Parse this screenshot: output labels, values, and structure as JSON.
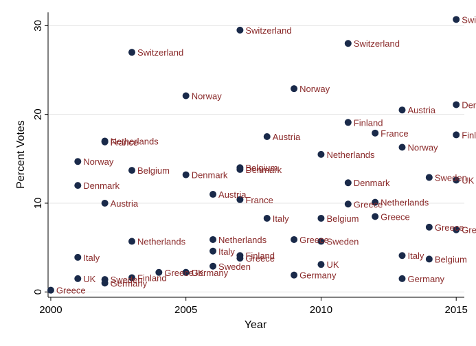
{
  "chart_data": {
    "type": "scatter",
    "xlabel": "Year",
    "ylabel": "Percent Votes",
    "xlim": [
      1999.9,
      2015.3
    ],
    "ylim": [
      -0.6,
      31.5
    ],
    "xticks": [
      2000,
      2005,
      2010,
      2015
    ],
    "yticks": [
      0,
      10,
      20,
      30
    ],
    "grid": "horizontal",
    "marker_color": "#1a2a4a",
    "label_color": "#8a2a2a",
    "points": [
      {
        "x": 2000,
        "y": 0.2,
        "label": "Greece"
      },
      {
        "x": 2001,
        "y": 14.7,
        "label": "Norway"
      },
      {
        "x": 2001,
        "y": 12.0,
        "label": "Denmark"
      },
      {
        "x": 2001,
        "y": 3.9,
        "label": "Italy"
      },
      {
        "x": 2001,
        "y": 1.5,
        "label": "UK"
      },
      {
        "x": 2002,
        "y": 17.0,
        "label": "Netherlands"
      },
      {
        "x": 2002,
        "y": 16.9,
        "label": "France"
      },
      {
        "x": 2002,
        "y": 10.0,
        "label": "Austria"
      },
      {
        "x": 2002,
        "y": 1.4,
        "label": "Sweden"
      },
      {
        "x": 2002,
        "y": 1.0,
        "label": "Germany"
      },
      {
        "x": 2003,
        "y": 27.0,
        "label": "Switzerland"
      },
      {
        "x": 2003,
        "y": 13.7,
        "label": "Belgium"
      },
      {
        "x": 2003,
        "y": 5.7,
        "label": "Netherlands"
      },
      {
        "x": 2003,
        "y": 1.6,
        "label": "Finland"
      },
      {
        "x": 2004,
        "y": 2.2,
        "label": "Greece"
      },
      {
        "x": 2005,
        "y": 22.1,
        "label": "Norway"
      },
      {
        "x": 2005,
        "y": 13.2,
        "label": "Denmark"
      },
      {
        "x": 2005,
        "y": 2.2,
        "label": "UK"
      },
      {
        "x": 2005,
        "y": 2.2,
        "label": "Germany"
      },
      {
        "x": 2006,
        "y": 11.0,
        "label": "Austria"
      },
      {
        "x": 2006,
        "y": 5.9,
        "label": "Netherlands"
      },
      {
        "x": 2006,
        "y": 4.6,
        "label": "Italy"
      },
      {
        "x": 2006,
        "y": 2.9,
        "label": "Sweden"
      },
      {
        "x": 2007,
        "y": 29.5,
        "label": "Switzerland"
      },
      {
        "x": 2007,
        "y": 14.0,
        "label": "Belgium"
      },
      {
        "x": 2007,
        "y": 13.8,
        "label": "Denmark"
      },
      {
        "x": 2007,
        "y": 10.4,
        "label": "France"
      },
      {
        "x": 2007,
        "y": 4.1,
        "label": "Finland"
      },
      {
        "x": 2007,
        "y": 3.8,
        "label": "Greece"
      },
      {
        "x": 2008,
        "y": 17.5,
        "label": "Austria"
      },
      {
        "x": 2008,
        "y": 8.3,
        "label": "Italy"
      },
      {
        "x": 2009,
        "y": 22.9,
        "label": "Norway"
      },
      {
        "x": 2009,
        "y": 5.9,
        "label": "Greece"
      },
      {
        "x": 2009,
        "y": 1.9,
        "label": "Germany"
      },
      {
        "x": 2010,
        "y": 15.5,
        "label": "Netherlands"
      },
      {
        "x": 2010,
        "y": 8.3,
        "label": "Belgium"
      },
      {
        "x": 2010,
        "y": 5.7,
        "label": "Sweden"
      },
      {
        "x": 2010,
        "y": 3.1,
        "label": "UK"
      },
      {
        "x": 2011,
        "y": 28.0,
        "label": "Switzerland"
      },
      {
        "x": 2011,
        "y": 19.1,
        "label": "Finland"
      },
      {
        "x": 2011,
        "y": 12.3,
        "label": "Denmark"
      },
      {
        "x": 2011,
        "y": 9.9,
        "label": "Greece"
      },
      {
        "x": 2012,
        "y": 17.9,
        "label": "France"
      },
      {
        "x": 2012,
        "y": 10.1,
        "label": "Netherlands"
      },
      {
        "x": 2012,
        "y": 8.5,
        "label": "Greece"
      },
      {
        "x": 2013,
        "y": 20.5,
        "label": "Austria"
      },
      {
        "x": 2013,
        "y": 16.3,
        "label": "Norway"
      },
      {
        "x": 2013,
        "y": 4.1,
        "label": "Italy"
      },
      {
        "x": 2013,
        "y": 1.5,
        "label": "Germany"
      },
      {
        "x": 2014,
        "y": 12.9,
        "label": "Sweden"
      },
      {
        "x": 2014,
        "y": 7.3,
        "label": "Greece"
      },
      {
        "x": 2014,
        "y": 3.7,
        "label": "Belgium"
      },
      {
        "x": 2015,
        "y": 30.7,
        "label": "Switzerland"
      },
      {
        "x": 2015,
        "y": 21.1,
        "label": "Denmark"
      },
      {
        "x": 2015,
        "y": 17.7,
        "label": "Finland"
      },
      {
        "x": 2015,
        "y": 12.6,
        "label": "UK"
      },
      {
        "x": 2015,
        "y": 7.0,
        "label": "Greece"
      }
    ]
  }
}
